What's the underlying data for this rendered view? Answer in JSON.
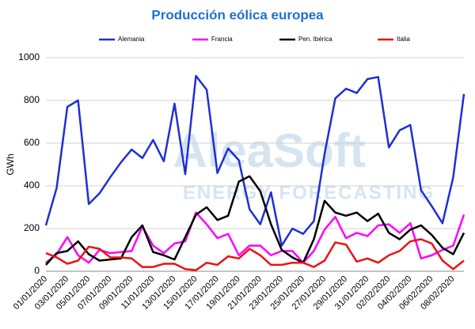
{
  "chart_data": {
    "type": "line",
    "title": "Producción eólica europea",
    "watermark": [
      "AleaSoft",
      "ENERGY FORECASTING"
    ],
    "y_label": "GWh",
    "categories": [
      "01/01/2020",
      "02/01/2020",
      "03/01/2020",
      "04/01/2020",
      "05/01/2020",
      "06/01/2020",
      "07/01/2020",
      "08/01/2020",
      "09/01/2020",
      "10/01/2020",
      "11/01/2020",
      "12/01/2020",
      "13/01/2020",
      "14/01/2020",
      "15/01/2020",
      "16/01/2020",
      "17/01/2020",
      "18/01/2020",
      "19/01/2020",
      "20/01/2020",
      "21/01/2020",
      "22/01/2020",
      "23/01/2020",
      "24/01/2020",
      "25/01/2020",
      "26/01/2020",
      "27/01/2020",
      "28/01/2020",
      "29/01/2020",
      "30/01/2020",
      "31/01/2020",
      "01/02/2020",
      "02/02/2020",
      "03/02/2020",
      "04/02/2020",
      "05/02/2020",
      "06/02/2020",
      "07/02/2020",
      "08/02/2020",
      "09/02/2020"
    ],
    "label_every": 2,
    "series": [
      {
        "name": "Alemania",
        "color": "#1f2fd6",
        "values": [
          215,
          390,
          770,
          800,
          315,
          365,
          440,
          510,
          570,
          530,
          615,
          515,
          785,
          455,
          915,
          850,
          460,
          575,
          520,
          290,
          220,
          370,
          120,
          200,
          175,
          235,
          550,
          810,
          855,
          835,
          900,
          910,
          580,
          660,
          685,
          380,
          305,
          225,
          440,
          830
        ]
      },
      {
        "name": "Francia",
        "color": "#ff00ff",
        "values": [
          40,
          80,
          160,
          75,
          40,
          100,
          85,
          90,
          95,
          210,
          120,
          85,
          130,
          140,
          275,
          220,
          155,
          175,
          75,
          120,
          120,
          75,
          95,
          95,
          40,
          95,
          195,
          255,
          155,
          180,
          165,
          215,
          220,
          180,
          225,
          60,
          75,
          100,
          120,
          265
        ]
      },
      {
        "name": "Pen. Ibérica",
        "color": "#000000",
        "values": [
          30,
          85,
          95,
          140,
          80,
          50,
          55,
          60,
          160,
          215,
          90,
          75,
          55,
          160,
          265,
          300,
          240,
          260,
          420,
          445,
          375,
          220,
          100,
          65,
          40,
          150,
          330,
          275,
          260,
          275,
          235,
          270,
          180,
          150,
          195,
          215,
          170,
          110,
          80,
          180
        ]
      },
      {
        "name": "Italia",
        "color": "#ee1111",
        "values": [
          85,
          65,
          35,
          50,
          115,
          105,
          65,
          65,
          60,
          20,
          20,
          35,
          35,
          10,
          5,
          40,
          30,
          70,
          60,
          105,
          75,
          30,
          30,
          40,
          40,
          20,
          50,
          135,
          125,
          45,
          60,
          40,
          75,
          95,
          140,
          150,
          130,
          50,
          10,
          50
        ]
      }
    ],
    "ylim": [
      0,
      1000
    ],
    "yticks": [
      0,
      200,
      400,
      600,
      800,
      1000
    ],
    "grid": true,
    "legend": "top"
  }
}
